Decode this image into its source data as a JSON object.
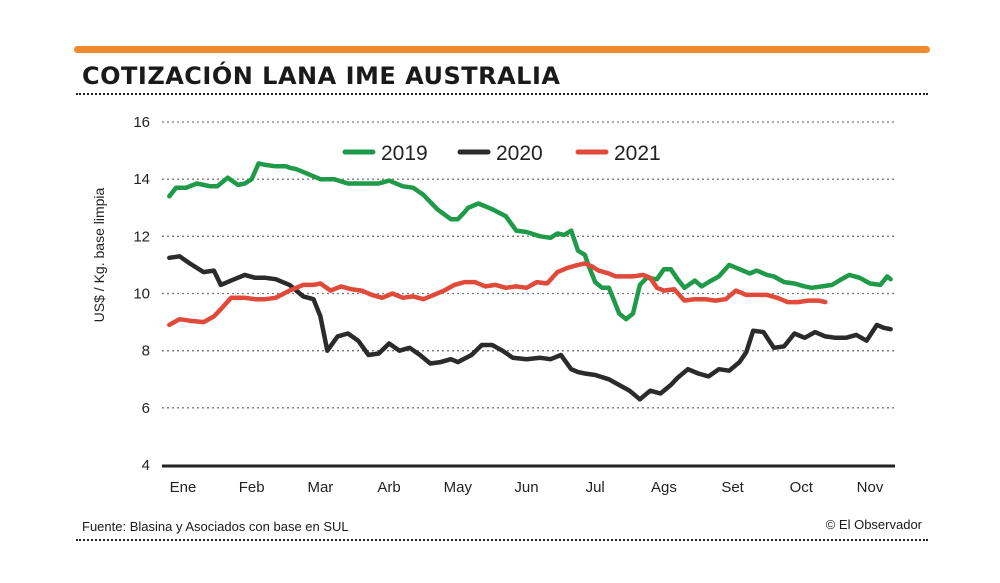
{
  "header": {
    "title": "COTIZACIÓN LANA IME AUSTRALIA"
  },
  "footer": {
    "source": "Fuente: Blasina y Asociados con base en SUL",
    "credit": "© El Observador"
  },
  "colors": {
    "accent": "#f08a2e",
    "series_2019": "#1e9a48",
    "series_2020": "#2b2b2b",
    "series_2021": "#e04a3a"
  },
  "chart_data": {
    "type": "line",
    "title": "COTIZACIÓN LANA IME AUSTRALIA",
    "xlabel": "",
    "ylabel": "US$ / Kg. base limpia",
    "ylim": [
      4,
      16
    ],
    "yticks": [
      4,
      6,
      8,
      10,
      12,
      14,
      16
    ],
    "xlim": [
      0,
      10.5
    ],
    "categories": [
      "Ene",
      "Feb",
      "Mar",
      "Arb",
      "May",
      "Jun",
      "Jul",
      "Ags",
      "Set",
      "Oct",
      "Nov"
    ],
    "grid": true,
    "legend": "top-center",
    "series": [
      {
        "name": "2019",
        "x": [
          -0.2,
          -0.1,
          0.05,
          0.2,
          0.4,
          0.5,
          0.65,
          0.8,
          0.9,
          1.0,
          1.1,
          1.2,
          1.35,
          1.5,
          1.55,
          1.65,
          1.8,
          2.0,
          2.2,
          2.4,
          2.55,
          2.7,
          2.85,
          3.0,
          3.2,
          3.35,
          3.5,
          3.7,
          3.9,
          4.0,
          4.1,
          4.15,
          4.3,
          4.5,
          4.7,
          4.85,
          5.0,
          5.2,
          5.35,
          5.45,
          5.55,
          5.65,
          5.75,
          5.85,
          5.9,
          6.0,
          6.1,
          6.2,
          6.35,
          6.45,
          6.55,
          6.65,
          6.75,
          6.9,
          7.0,
          7.1,
          7.2,
          7.3,
          7.45,
          7.55,
          7.65,
          7.8,
          7.95,
          8.1,
          8.25,
          8.35,
          8.5,
          8.6,
          8.75,
          8.9,
          9.05,
          9.15,
          9.3,
          9.45,
          9.55,
          9.7,
          9.85,
          10.0,
          10.15,
          10.25,
          10.3
        ],
        "values": [
          13.4,
          13.7,
          13.7,
          13.85,
          13.75,
          13.75,
          14.05,
          13.8,
          13.85,
          14.0,
          14.55,
          14.5,
          14.45,
          14.45,
          14.4,
          14.35,
          14.2,
          14.0,
          14.0,
          13.85,
          13.85,
          13.85,
          13.85,
          13.95,
          13.75,
          13.7,
          13.45,
          12.95,
          12.6,
          12.6,
          12.85,
          13.0,
          13.15,
          12.95,
          12.7,
          12.2,
          12.15,
          12.0,
          11.95,
          12.1,
          12.05,
          12.2,
          11.5,
          11.35,
          11.0,
          10.4,
          10.2,
          10.2,
          9.3,
          9.1,
          9.3,
          10.3,
          10.55,
          10.5,
          10.85,
          10.85,
          10.5,
          10.2,
          10.45,
          10.25,
          10.4,
          10.6,
          11.0,
          10.85,
          10.7,
          10.8,
          10.65,
          10.6,
          10.4,
          10.35,
          10.25,
          10.2,
          10.25,
          10.3,
          10.45,
          10.65,
          10.55,
          10.35,
          10.3,
          10.6,
          10.5
        ]
      },
      {
        "name": "2020",
        "x": [
          -0.2,
          -0.05,
          0.1,
          0.3,
          0.45,
          0.55,
          0.7,
          0.9,
          1.05,
          1.2,
          1.35,
          1.55,
          1.75,
          1.9,
          2.0,
          2.1,
          2.25,
          2.4,
          2.55,
          2.7,
          2.85,
          3.0,
          3.15,
          3.3,
          3.45,
          3.6,
          3.75,
          3.9,
          4.0,
          4.2,
          4.35,
          4.5,
          4.65,
          4.8,
          5.0,
          5.2,
          5.35,
          5.5,
          5.65,
          5.75,
          5.85,
          6.0,
          6.2,
          6.35,
          6.5,
          6.65,
          6.8,
          6.95,
          7.1,
          7.2,
          7.35,
          7.5,
          7.65,
          7.8,
          7.95,
          8.1,
          8.2,
          8.3,
          8.45,
          8.6,
          8.75,
          8.9,
          9.05,
          9.2,
          9.35,
          9.5,
          9.65,
          9.8,
          9.95,
          10.1,
          10.2,
          10.3
        ],
        "values": [
          11.25,
          11.3,
          11.05,
          10.75,
          10.8,
          10.3,
          10.45,
          10.65,
          10.55,
          10.55,
          10.5,
          10.3,
          9.9,
          9.8,
          9.2,
          8.0,
          8.5,
          8.6,
          8.35,
          7.85,
          7.9,
          8.25,
          8.0,
          8.1,
          7.85,
          7.55,
          7.6,
          7.7,
          7.6,
          7.85,
          8.2,
          8.2,
          8.0,
          7.75,
          7.7,
          7.75,
          7.7,
          7.85,
          7.35,
          7.25,
          7.2,
          7.15,
          7.0,
          6.8,
          6.6,
          6.3,
          6.6,
          6.5,
          6.8,
          7.05,
          7.35,
          7.2,
          7.1,
          7.35,
          7.3,
          7.6,
          7.95,
          8.7,
          8.65,
          8.1,
          8.15,
          8.6,
          8.45,
          8.65,
          8.5,
          8.45,
          8.45,
          8.55,
          8.35,
          8.9,
          8.8,
          8.75
        ]
      },
      {
        "name": "2021",
        "x": [
          -0.2,
          -0.05,
          0.1,
          0.3,
          0.45,
          0.55,
          0.7,
          0.9,
          1.05,
          1.2,
          1.35,
          1.55,
          1.75,
          1.9,
          2.0,
          2.15,
          2.3,
          2.45,
          2.6,
          2.75,
          2.9,
          3.05,
          3.2,
          3.35,
          3.5,
          3.65,
          3.8,
          3.95,
          4.1,
          4.25,
          4.4,
          4.55,
          4.7,
          4.85,
          5.0,
          5.15,
          5.3,
          5.45,
          5.6,
          5.75,
          5.85,
          5.95,
          6.05,
          6.2,
          6.3,
          6.4,
          6.55,
          6.7,
          6.8,
          6.9,
          7.0,
          7.15,
          7.3,
          7.45,
          7.6,
          7.75,
          7.9,
          8.05,
          8.2,
          8.35,
          8.5,
          8.65,
          8.8,
          8.95,
          9.1,
          9.25,
          9.35
        ],
        "values": [
          8.9,
          9.1,
          9.05,
          9.0,
          9.2,
          9.45,
          9.85,
          9.85,
          9.8,
          9.8,
          9.85,
          10.1,
          10.3,
          10.3,
          10.35,
          10.1,
          10.25,
          10.15,
          10.1,
          9.95,
          9.85,
          10.0,
          9.85,
          9.9,
          9.8,
          9.95,
          10.1,
          10.3,
          10.4,
          10.4,
          10.25,
          10.3,
          10.2,
          10.25,
          10.2,
          10.4,
          10.35,
          10.75,
          10.9,
          11.0,
          11.05,
          10.95,
          10.8,
          10.7,
          10.6,
          10.6,
          10.6,
          10.65,
          10.55,
          10.2,
          10.1,
          10.15,
          9.75,
          9.8,
          9.8,
          9.75,
          9.8,
          10.1,
          9.95,
          9.95,
          9.95,
          9.85,
          9.7,
          9.7,
          9.75,
          9.75,
          9.7
        ]
      }
    ]
  }
}
